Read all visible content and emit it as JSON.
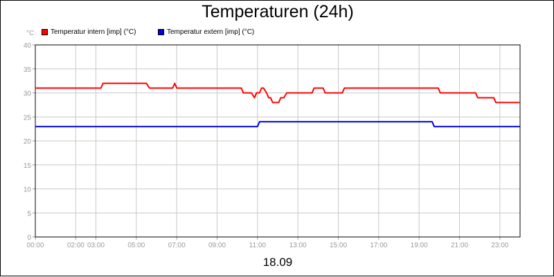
{
  "chart_data": {
    "type": "line",
    "title": "Temperaturen (24h)",
    "ylabel": "°C",
    "xlabel": "18.09",
    "ylim": [
      0,
      40
    ],
    "xlim": [
      0,
      24
    ],
    "grid": true,
    "legend_position": "top-left",
    "y_ticks": [
      "0",
      "5",
      "10",
      "15",
      "20",
      "25",
      "30",
      "35",
      "40"
    ],
    "y_tick_values": [
      0,
      5,
      10,
      15,
      20,
      25,
      30,
      35,
      40
    ],
    "x_ticks": [
      {
        "label": "00:00",
        "value": 0
      },
      {
        "label": "02:00",
        "value": 2
      },
      {
        "label": "03:00",
        "value": 3
      },
      {
        "label": "05:00",
        "value": 5
      },
      {
        "label": "07:00",
        "value": 7
      },
      {
        "label": "09:00",
        "value": 9
      },
      {
        "label": "11:00",
        "value": 11
      },
      {
        "label": "13:00",
        "value": 13
      },
      {
        "label": "15:00",
        "value": 15
      },
      {
        "label": "17:00",
        "value": 17
      },
      {
        "label": "19:00",
        "value": 19
      },
      {
        "label": "21:00",
        "value": 21
      },
      {
        "label": "23:00",
        "value": 23
      }
    ],
    "series": [
      {
        "name": "Temperatur intern [imp] (°C)",
        "color": "#ff0000",
        "points": [
          [
            0,
            31
          ],
          [
            3.25,
            31
          ],
          [
            3.35,
            32
          ],
          [
            5.5,
            32
          ],
          [
            5.65,
            31
          ],
          [
            6.8,
            31
          ],
          [
            6.9,
            32
          ],
          [
            7.0,
            31
          ],
          [
            10.2,
            31
          ],
          [
            10.3,
            30
          ],
          [
            10.7,
            30
          ],
          [
            10.85,
            29
          ],
          [
            10.95,
            30
          ],
          [
            11.1,
            30
          ],
          [
            11.2,
            31
          ],
          [
            11.3,
            31
          ],
          [
            11.45,
            30
          ],
          [
            11.55,
            29
          ],
          [
            11.65,
            29
          ],
          [
            11.75,
            28
          ],
          [
            12.05,
            28
          ],
          [
            12.15,
            29
          ],
          [
            12.3,
            29
          ],
          [
            12.45,
            30
          ],
          [
            13.7,
            30
          ],
          [
            13.8,
            31
          ],
          [
            14.25,
            31
          ],
          [
            14.35,
            30
          ],
          [
            15.2,
            30
          ],
          [
            15.3,
            31
          ],
          [
            19.95,
            31
          ],
          [
            20.05,
            30
          ],
          [
            21.8,
            30
          ],
          [
            21.9,
            29
          ],
          [
            22.7,
            29
          ],
          [
            22.8,
            28
          ],
          [
            24,
            28
          ]
        ]
      },
      {
        "name": "Temperatur extern [imp] (°C)",
        "color": "#0000dd",
        "points": [
          [
            0,
            23
          ],
          [
            11.0,
            23
          ],
          [
            11.1,
            24
          ],
          [
            19.65,
            24
          ],
          [
            19.75,
            23
          ],
          [
            24,
            23
          ]
        ]
      }
    ]
  }
}
